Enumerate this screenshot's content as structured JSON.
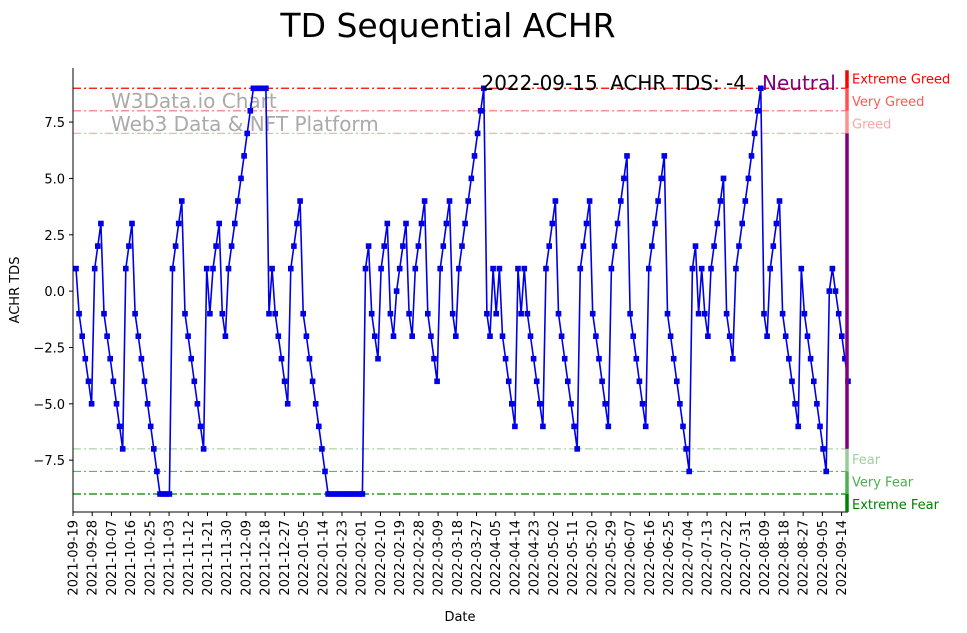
{
  "chart_data": {
    "type": "line",
    "title": "TD Sequential ACHR",
    "xlabel": "Date",
    "ylabel": "ACHR TDS",
    "ylim": [
      -9.8,
      9.9
    ],
    "grid": false,
    "x_start": "2021-09-19",
    "x_end": "2022-09-17",
    "x_ticks": [
      "2021-09-19",
      "2021-09-28",
      "2021-10-07",
      "2021-10-16",
      "2021-10-25",
      "2021-11-03",
      "2021-11-12",
      "2021-11-21",
      "2021-11-30",
      "2021-12-09",
      "2021-12-18",
      "2021-12-27",
      "2022-01-05",
      "2022-01-14",
      "2022-01-23",
      "2022-02-01",
      "2022-02-10",
      "2022-02-19",
      "2022-02-28",
      "2022-03-09",
      "2022-03-18",
      "2022-03-27",
      "2022-04-05",
      "2022-04-14",
      "2022-04-23",
      "2022-05-02",
      "2022-05-11",
      "2022-05-20",
      "2022-05-29",
      "2022-06-07",
      "2022-06-16",
      "2022-06-25",
      "2022-07-04",
      "2022-07-13",
      "2022-07-22",
      "2022-07-31",
      "2022-08-09",
      "2022-08-18",
      "2022-08-27",
      "2022-09-05",
      "2022-09-14"
    ],
    "y_ticks": [
      "−7.5",
      "−5.0",
      "−2.5",
      "0.0",
      "2.5",
      "5.0",
      "7.5"
    ],
    "y_tick_values": [
      -7.5,
      -5.0,
      -2.5,
      0.0,
      2.5,
      5.0,
      7.5
    ],
    "series": [
      {
        "color": "#0000e6",
        "marker": "square",
        "values": [
          1,
          -1,
          -2,
          -3,
          -4,
          -5,
          1,
          2,
          3,
          -1,
          -2,
          -3,
          -4,
          -5,
          -6,
          -7,
          1,
          2,
          3,
          -1,
          -2,
          -3,
          -4,
          -5,
          -6,
          -7,
          -8,
          -9,
          -9,
          -9,
          -9,
          1,
          2,
          3,
          4,
          -1,
          -2,
          -3,
          -4,
          -5,
          -6,
          -7,
          1,
          -1,
          1,
          2,
          3,
          -1,
          -2,
          1,
          2,
          3,
          4,
          5,
          6,
          7,
          8,
          9,
          9,
          9,
          9,
          9,
          -1,
          1,
          -1,
          -2,
          -3,
          -4,
          -5,
          1,
          2,
          3,
          4,
          -1,
          -2,
          -3,
          -4,
          -5,
          -6,
          -7,
          -8,
          -9,
          -9,
          -9,
          -9,
          -9,
          -9,
          -9,
          -9,
          -9,
          -9,
          -9,
          -9,
          1,
          2,
          -1,
          -2,
          -3,
          1,
          2,
          3,
          -1,
          -2,
          0,
          1,
          2,
          3,
          -1,
          -2,
          1,
          2,
          3,
          4,
          -1,
          -2,
          -3,
          -4,
          1,
          2,
          3,
          4,
          -1,
          -2,
          1,
          2,
          3,
          4,
          5,
          6,
          7,
          8,
          9,
          -1,
          -2,
          1,
          -1,
          1,
          -2,
          -3,
          -4,
          -5,
          -6,
          1,
          -1,
          1,
          -1,
          -2,
          -3,
          -4,
          -5,
          -6,
          1,
          2,
          3,
          4,
          -1,
          -2,
          -3,
          -4,
          -5,
          -6,
          -7,
          1,
          2,
          3,
          4,
          -1,
          -2,
          -3,
          -4,
          -5,
          -6,
          1,
          2,
          3,
          4,
          5,
          6,
          -1,
          -2,
          -3,
          -4,
          -5,
          -6,
          1,
          2,
          3,
          4,
          5,
          6,
          -1,
          -2,
          -3,
          -4,
          -5,
          -6,
          -7,
          -8,
          1,
          2,
          -1,
          1,
          -1,
          -2,
          1,
          2,
          3,
          4,
          5,
          -1,
          -2,
          -3,
          1,
          2,
          3,
          4,
          5,
          6,
          7,
          8,
          9,
          -1,
          -2,
          1,
          2,
          3,
          4,
          -1,
          -2,
          -3,
          -4,
          -5,
          -6,
          1,
          -1,
          -2,
          -3,
          -4,
          -5,
          -6,
          -7,
          -8,
          0,
          1,
          0,
          -1,
          -2,
          -3,
          -4
        ]
      }
    ],
    "levels": [
      {
        "value": 9,
        "label": "Extreme Greed",
        "color": "#ff0000",
        "alpha": 1.0
      },
      {
        "value": 8,
        "label": "Very Greed",
        "color": "#ff5050",
        "alpha": 0.85
      },
      {
        "value": 7,
        "label": "Greed",
        "color": "#ffa0a0",
        "alpha": 0.85
      },
      {
        "value": -7,
        "label": "Fear",
        "color": "#99cc99",
        "alpha": 0.85
      },
      {
        "value": -8,
        "label": "Very Fear",
        "color": "#4caf50",
        "alpha": 0.9
      },
      {
        "value": -9,
        "label": "Extreme Fear",
        "color": "#008000",
        "alpha": 1.0
      }
    ],
    "annotation": {
      "date": "2022-09-15",
      "text": "ACHR TDS: -4",
      "sentiment": "Neutral",
      "sentiment_color": "#800080"
    },
    "watermark": [
      "W3Data.io Chart",
      "Web3 Data & NFT Platform"
    ]
  }
}
